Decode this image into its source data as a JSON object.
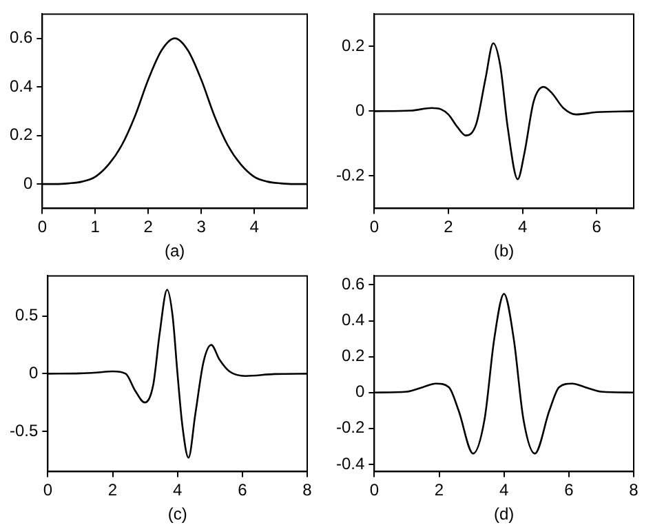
{
  "chart_data": [
    {
      "type": "line",
      "xlabel": "(a)",
      "color": "#000000",
      "xlim": [
        0,
        5
      ],
      "xticks": [
        0,
        1,
        2,
        3,
        4
      ],
      "ylim": [
        -0.1,
        0.7
      ],
      "yticks": [
        0,
        0.2,
        0.4,
        0.6
      ],
      "x": [
        0,
        0.25,
        0.5,
        0.75,
        1,
        1.25,
        1.5,
        1.75,
        2,
        2.25,
        2.5,
        2.75,
        3,
        3.25,
        3.5,
        3.75,
        4,
        4.25,
        4.5,
        4.75,
        5
      ],
      "values": [
        0,
        0,
        0.003,
        0.01,
        0.03,
        0.08,
        0.16,
        0.28,
        0.43,
        0.55,
        0.6,
        0.55,
        0.43,
        0.28,
        0.16,
        0.08,
        0.03,
        0.01,
        0.003,
        0,
        0
      ]
    },
    {
      "type": "line",
      "xlabel": "(b)",
      "color": "#000000",
      "xlim": [
        0,
        7
      ],
      "xticks": [
        0,
        2,
        4,
        6
      ],
      "ylim": [
        -0.3,
        0.3
      ],
      "yticks": [
        -0.2,
        0,
        0.2
      ],
      "x": [
        0,
        1,
        1.55,
        1.8,
        2,
        2.25,
        2.47,
        2.75,
        3,
        3.21,
        3.4,
        3.6,
        3.87,
        4.05,
        4.3,
        4.57,
        4.8,
        5.1,
        5.45,
        6,
        7
      ],
      "values": [
        0,
        0.002,
        0.01,
        0.006,
        -0.01,
        -0.05,
        -0.075,
        -0.04,
        0.1,
        0.21,
        0.14,
        -0.05,
        -0.21,
        -0.13,
        0.03,
        0.075,
        0.055,
        0.01,
        -0.01,
        -0.003,
        0
      ]
    },
    {
      "type": "line",
      "xlabel": "(c)",
      "color": "#000000",
      "xlim": [
        0,
        8
      ],
      "xticks": [
        0,
        2,
        4,
        6,
        8
      ],
      "ylim": [
        -0.85,
        0.85
      ],
      "yticks": [
        -0.5,
        0,
        0.5
      ],
      "x": [
        0,
        1,
        1.5,
        2,
        2.4,
        2.7,
        2.99,
        3.25,
        3.45,
        3.68,
        3.85,
        4.0,
        4.15,
        4.34,
        4.55,
        4.8,
        5.04,
        5.3,
        5.6,
        6.1,
        7,
        8
      ],
      "values": [
        0,
        0.003,
        0.01,
        0.02,
        0,
        -0.15,
        -0.25,
        -0.1,
        0.35,
        0.73,
        0.5,
        0,
        -0.45,
        -0.73,
        -0.35,
        0.1,
        0.25,
        0.12,
        0.02,
        -0.02,
        -0.003,
        0
      ]
    },
    {
      "type": "line",
      "xlabel": "(d)",
      "color": "#000000",
      "xlim": [
        0,
        8
      ],
      "xticks": [
        0,
        2,
        4,
        6,
        8
      ],
      "ylim": [
        -0.44,
        0.65
      ],
      "yticks": [
        -0.4,
        -0.2,
        0,
        0.2,
        0.4,
        0.6
      ],
      "x": [
        0,
        1,
        1.5,
        1.9,
        2.3,
        2.6,
        3.05,
        3.4,
        3.7,
        4,
        4.3,
        4.6,
        4.95,
        5.4,
        5.7,
        6.1,
        6.5,
        7,
        8
      ],
      "values": [
        0,
        0.005,
        0.03,
        0.05,
        0.03,
        -0.1,
        -0.34,
        -0.15,
        0.3,
        0.55,
        0.3,
        -0.15,
        -0.34,
        -0.1,
        0.03,
        0.05,
        0.03,
        0.005,
        0
      ]
    }
  ]
}
